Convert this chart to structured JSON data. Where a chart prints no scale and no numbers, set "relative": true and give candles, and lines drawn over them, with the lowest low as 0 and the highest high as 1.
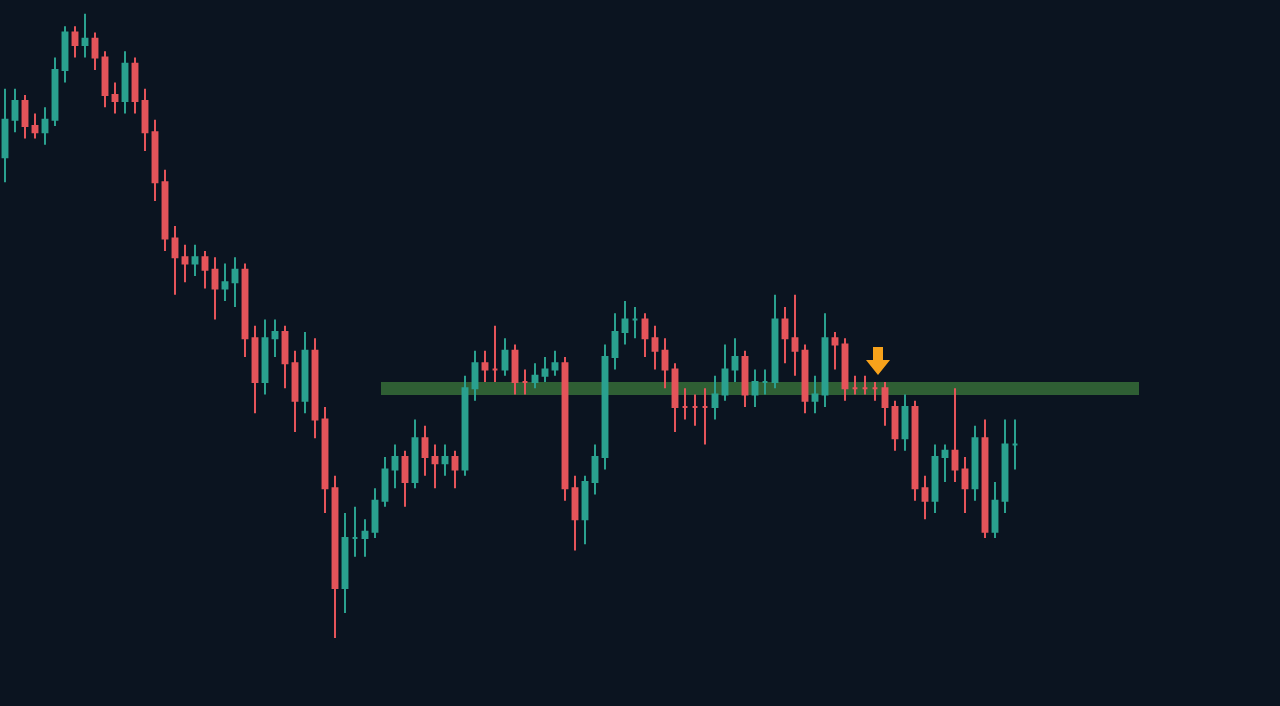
{
  "chart_data": {
    "type": "candlestick",
    "relative": true,
    "grid": false,
    "legend": false,
    "categories": [
      null,
      null,
      null,
      null,
      null,
      null,
      null,
      null,
      null,
      null,
      null,
      null,
      null,
      null,
      null,
      null,
      null,
      null,
      null,
      null,
      null,
      null,
      null,
      null,
      null,
      null,
      null,
      null,
      null,
      null,
      null,
      null,
      null,
      null,
      null,
      null,
      null,
      null,
      null,
      null,
      null,
      null,
      null,
      null,
      null,
      null,
      null,
      null,
      null,
      null,
      null,
      null,
      null,
      null,
      null,
      null,
      null,
      null,
      null,
      null,
      null,
      null,
      null,
      null,
      null,
      null,
      null,
      null,
      null,
      null,
      null,
      null,
      null,
      null,
      null,
      null,
      null,
      null,
      null,
      null,
      null,
      null,
      null,
      null,
      null,
      null,
      null,
      null,
      null,
      null,
      null,
      null,
      null,
      null,
      null,
      null,
      null,
      null,
      null,
      null,
      null,
      null
    ],
    "ohlc": [
      [
        0.77,
        0.88,
        0.73,
        0.83
      ],
      [
        0.83,
        0.88,
        0.81,
        0.86
      ],
      [
        0.86,
        0.87,
        0.8,
        0.82
      ],
      [
        0.82,
        0.84,
        0.8,
        0.81
      ],
      [
        0.81,
        0.85,
        0.79,
        0.83
      ],
      [
        0.83,
        0.93,
        0.82,
        0.91
      ],
      [
        0.91,
        0.98,
        0.89,
        0.97
      ],
      [
        0.97,
        0.98,
        0.93,
        0.95
      ],
      [
        0.95,
        1.0,
        0.93,
        0.96
      ],
      [
        0.96,
        0.97,
        0.91,
        0.93
      ],
      [
        0.93,
        0.94,
        0.85,
        0.87
      ],
      [
        0.87,
        0.89,
        0.84,
        0.86
      ],
      [
        0.86,
        0.94,
        0.84,
        0.92
      ],
      [
        0.92,
        0.93,
        0.84,
        0.86
      ],
      [
        0.86,
        0.88,
        0.78,
        0.81
      ],
      [
        0.81,
        0.83,
        0.7,
        0.73
      ],
      [
        0.73,
        0.75,
        0.62,
        0.64
      ],
      [
        0.64,
        0.66,
        0.55,
        0.61
      ],
      [
        0.61,
        0.63,
        0.57,
        0.6
      ],
      [
        0.6,
        0.63,
        0.58,
        0.61
      ],
      [
        0.61,
        0.62,
        0.56,
        0.59
      ],
      [
        0.59,
        0.61,
        0.51,
        0.56
      ],
      [
        0.56,
        0.6,
        0.54,
        0.57
      ],
      [
        0.57,
        0.61,
        0.53,
        0.59
      ],
      [
        0.59,
        0.6,
        0.45,
        0.48
      ],
      [
        0.48,
        0.5,
        0.36,
        0.41
      ],
      [
        0.41,
        0.51,
        0.39,
        0.48
      ],
      [
        0.48,
        0.51,
        0.45,
        0.49
      ],
      [
        0.49,
        0.5,
        0.4,
        0.44
      ],
      [
        0.44,
        0.46,
        0.33,
        0.38
      ],
      [
        0.38,
        0.49,
        0.36,
        0.46
      ],
      [
        0.46,
        0.48,
        0.32,
        0.35
      ],
      [
        0.35,
        0.37,
        0.2,
        0.24
      ],
      [
        0.24,
        0.26,
        0.0,
        0.08
      ],
      [
        0.08,
        0.2,
        0.04,
        0.16
      ],
      [
        0.16,
        0.21,
        0.13,
        0.16
      ],
      [
        0.16,
        0.19,
        0.13,
        0.17
      ],
      [
        0.17,
        0.24,
        0.16,
        0.22
      ],
      [
        0.22,
        0.29,
        0.21,
        0.27
      ],
      [
        0.27,
        0.31,
        0.24,
        0.29
      ],
      [
        0.29,
        0.3,
        0.21,
        0.25
      ],
      [
        0.25,
        0.35,
        0.24,
        0.32
      ],
      [
        0.32,
        0.34,
        0.26,
        0.29
      ],
      [
        0.29,
        0.31,
        0.24,
        0.28
      ],
      [
        0.28,
        0.31,
        0.26,
        0.29
      ],
      [
        0.29,
        0.3,
        0.24,
        0.27
      ],
      [
        0.27,
        0.42,
        0.26,
        0.4
      ],
      [
        0.4,
        0.46,
        0.38,
        0.44
      ],
      [
        0.44,
        0.46,
        0.41,
        0.43
      ],
      [
        0.43,
        0.5,
        0.41,
        0.43
      ],
      [
        0.43,
        0.48,
        0.42,
        0.46
      ],
      [
        0.46,
        0.47,
        0.39,
        0.41
      ],
      [
        0.41,
        0.43,
        0.39,
        0.41
      ],
      [
        0.41,
        0.44,
        0.4,
        0.42
      ],
      [
        0.42,
        0.45,
        0.41,
        0.43
      ],
      [
        0.43,
        0.46,
        0.42,
        0.44
      ],
      [
        0.44,
        0.45,
        0.22,
        0.24
      ],
      [
        0.24,
        0.26,
        0.14,
        0.19
      ],
      [
        0.19,
        0.26,
        0.15,
        0.25
      ],
      [
        0.25,
        0.31,
        0.23,
        0.29
      ],
      [
        0.29,
        0.47,
        0.27,
        0.45
      ],
      [
        0.45,
        0.52,
        0.43,
        0.49
      ],
      [
        0.49,
        0.54,
        0.47,
        0.51
      ],
      [
        0.51,
        0.53,
        0.48,
        0.51
      ],
      [
        0.51,
        0.52,
        0.45,
        0.48
      ],
      [
        0.48,
        0.5,
        0.43,
        0.46
      ],
      [
        0.46,
        0.48,
        0.4,
        0.43
      ],
      [
        0.43,
        0.44,
        0.33,
        0.37
      ],
      [
        0.37,
        0.4,
        0.35,
        0.37
      ],
      [
        0.37,
        0.39,
        0.34,
        0.37
      ],
      [
        0.37,
        0.4,
        0.31,
        0.37
      ],
      [
        0.37,
        0.42,
        0.35,
        0.39
      ],
      [
        0.39,
        0.47,
        0.38,
        0.43
      ],
      [
        0.43,
        0.48,
        0.41,
        0.45
      ],
      [
        0.45,
        0.46,
        0.37,
        0.39
      ],
      [
        0.39,
        0.43,
        0.37,
        0.41
      ],
      [
        0.41,
        0.43,
        0.39,
        0.41
      ],
      [
        0.41,
        0.55,
        0.4,
        0.51
      ],
      [
        0.51,
        0.53,
        0.44,
        0.48
      ],
      [
        0.48,
        0.55,
        0.42,
        0.46
      ],
      [
        0.46,
        0.47,
        0.36,
        0.38
      ],
      [
        0.38,
        0.42,
        0.36,
        0.39
      ],
      [
        0.39,
        0.52,
        0.37,
        0.48
      ],
      [
        0.48,
        0.49,
        0.43,
        0.47
      ],
      [
        0.47,
        0.48,
        0.38,
        0.4
      ],
      [
        0.4,
        0.42,
        0.39,
        0.4
      ],
      [
        0.4,
        0.42,
        0.39,
        0.4
      ],
      [
        0.4,
        0.41,
        0.38,
        0.4
      ],
      [
        0.4,
        0.41,
        0.34,
        0.37
      ],
      [
        0.37,
        0.38,
        0.3,
        0.32
      ],
      [
        0.32,
        0.39,
        0.3,
        0.37
      ],
      [
        0.37,
        0.38,
        0.22,
        0.24
      ],
      [
        0.24,
        0.26,
        0.19,
        0.22
      ],
      [
        0.22,
        0.31,
        0.2,
        0.29
      ],
      [
        0.29,
        0.31,
        0.25,
        0.3
      ],
      [
        0.3,
        0.4,
        0.25,
        0.27
      ],
      [
        0.27,
        0.29,
        0.2,
        0.24
      ],
      [
        0.24,
        0.34,
        0.22,
        0.32
      ],
      [
        0.32,
        0.35,
        0.16,
        0.17
      ],
      [
        0.17,
        0.25,
        0.16,
        0.22
      ],
      [
        0.22,
        0.35,
        0.2,
        0.31
      ],
      [
        0.31,
        0.35,
        0.27,
        0.31
      ]
    ],
    "bands": [
      {
        "axis": "y",
        "from": 0.39,
        "to": 0.41,
        "color": "#2f5f34"
      }
    ]
  }
}
